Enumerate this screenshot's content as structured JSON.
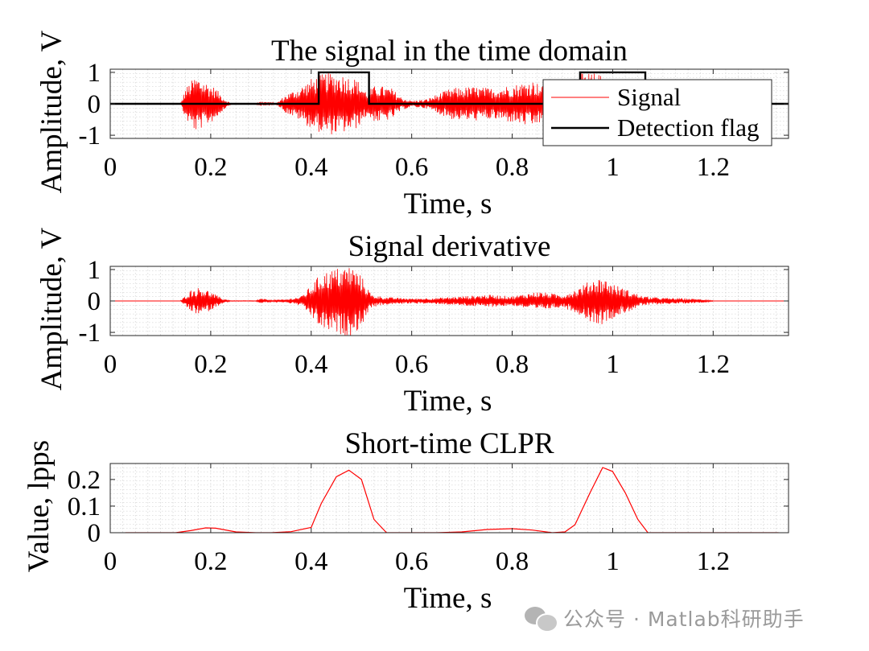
{
  "chart_data": [
    {
      "type": "line",
      "title": "The signal in the time domain",
      "xlabel": "Time, s",
      "ylabel": "Amplitude, V",
      "xlim": [
        0,
        1.35
      ],
      "ylim": [
        -1.1,
        1.1
      ],
      "xticks": [
        0,
        0.2,
        0.4,
        0.6,
        0.8,
        1,
        1.2
      ],
      "xtick_labels": [
        "0",
        "0.2",
        "0.4",
        "0.6",
        "0.8",
        "1",
        "1.2"
      ],
      "yticks": [
        -1,
        0,
        1
      ],
      "ytick_labels": [
        "-1",
        "0",
        "1"
      ],
      "grid": "minor dotted",
      "legend": {
        "position": "top-right",
        "entries": [
          "Signal",
          "Detection flag"
        ]
      },
      "series": [
        {
          "name": "Signal",
          "color": "#ff0000",
          "kind": "oscillation",
          "envelope": [
            [
              0.14,
              0.01
            ],
            [
              0.15,
              0.5
            ],
            [
              0.17,
              0.9
            ],
            [
              0.19,
              0.7
            ],
            [
              0.21,
              0.5
            ],
            [
              0.225,
              0.2
            ],
            [
              0.24,
              0.01
            ],
            [
              0.29,
              0.01
            ],
            [
              0.3,
              0.08
            ],
            [
              0.32,
              0.05
            ],
            [
              0.33,
              0.01
            ],
            [
              0.35,
              0.3
            ],
            [
              0.38,
              0.55
            ],
            [
              0.4,
              0.8
            ],
            [
              0.43,
              1.0
            ],
            [
              0.46,
              0.95
            ],
            [
              0.49,
              0.8
            ],
            [
              0.51,
              0.4
            ],
            [
              0.53,
              0.6
            ],
            [
              0.56,
              0.5
            ],
            [
              0.58,
              0.2
            ],
            [
              0.6,
              0.1
            ],
            [
              0.63,
              0.15
            ],
            [
              0.65,
              0.3
            ],
            [
              0.68,
              0.5
            ],
            [
              0.72,
              0.55
            ],
            [
              0.76,
              0.5
            ],
            [
              0.8,
              0.6
            ],
            [
              0.84,
              0.75
            ],
            [
              0.87,
              0.5
            ],
            [
              0.9,
              0.7
            ],
            [
              0.93,
              0.95
            ],
            [
              0.96,
              1.0
            ],
            [
              0.99,
              0.85
            ],
            [
              1.03,
              0.7
            ],
            [
              1.06,
              0.5
            ],
            [
              1.1,
              0.3
            ],
            [
              1.14,
              0.15
            ],
            [
              1.17,
              0.08
            ],
            [
              1.2,
              0.01
            ]
          ]
        },
        {
          "name": "Detection flag",
          "color": "#000000",
          "x": [
            0,
            0.415,
            0.415,
            0.515,
            0.515,
            0.935,
            0.935,
            1.065,
            1.065,
            1.35
          ],
          "y": [
            0,
            0,
            1,
            1,
            0,
            0,
            1,
            1,
            0,
            0
          ]
        }
      ]
    },
    {
      "type": "line",
      "title": "Signal derivative",
      "xlabel": "Time, s",
      "ylabel": "Amplitude, V",
      "xlim": [
        0,
        1.35
      ],
      "ylim": [
        -1.1,
        1.1
      ],
      "xticks": [
        0,
        0.2,
        0.4,
        0.6,
        0.8,
        1,
        1.2
      ],
      "xtick_labels": [
        "0",
        "0.2",
        "0.4",
        "0.6",
        "0.8",
        "1",
        "1.2"
      ],
      "yticks": [
        -1,
        0,
        1
      ],
      "ytick_labels": [
        "-1",
        "0",
        "1"
      ],
      "grid": "minor dotted",
      "series": [
        {
          "name": "",
          "color": "#ff0000",
          "kind": "oscillation",
          "envelope": [
            [
              0.14,
              0.01
            ],
            [
              0.16,
              0.35
            ],
            [
              0.18,
              0.45
            ],
            [
              0.2,
              0.3
            ],
            [
              0.22,
              0.1
            ],
            [
              0.24,
              0.01
            ],
            [
              0.29,
              0.01
            ],
            [
              0.3,
              0.08
            ],
            [
              0.32,
              0.03
            ],
            [
              0.35,
              0.05
            ],
            [
              0.38,
              0.15
            ],
            [
              0.4,
              0.5
            ],
            [
              0.42,
              0.9
            ],
            [
              0.45,
              1.05
            ],
            [
              0.48,
              1.15
            ],
            [
              0.5,
              0.8
            ],
            [
              0.52,
              0.2
            ],
            [
              0.55,
              0.12
            ],
            [
              0.6,
              0.08
            ],
            [
              0.65,
              0.1
            ],
            [
              0.7,
              0.15
            ],
            [
              0.75,
              0.2
            ],
            [
              0.8,
              0.15
            ],
            [
              0.85,
              0.3
            ],
            [
              0.9,
              0.2
            ],
            [
              0.93,
              0.4
            ],
            [
              0.96,
              0.7
            ],
            [
              0.98,
              0.75
            ],
            [
              1.0,
              0.55
            ],
            [
              1.03,
              0.35
            ],
            [
              1.06,
              0.15
            ],
            [
              1.1,
              0.1
            ],
            [
              1.15,
              0.08
            ],
            [
              1.18,
              0.05
            ],
            [
              1.2,
              0.01
            ]
          ]
        }
      ]
    },
    {
      "type": "line",
      "title": "Short-time CLPR",
      "xlabel": "Time, s",
      "ylabel": "Value, lpps",
      "xlim": [
        0,
        1.35
      ],
      "ylim": [
        0,
        0.26
      ],
      "xticks": [
        0,
        0.2,
        0.4,
        0.6,
        0.8,
        1,
        1.2
      ],
      "xtick_labels": [
        "0",
        "0.2",
        "0.4",
        "0.6",
        "0.8",
        "1",
        "1.2"
      ],
      "yticks": [
        0,
        0.1,
        0.2
      ],
      "ytick_labels": [
        "0",
        "0.1",
        "0.2"
      ],
      "grid": "minor dotted",
      "series": [
        {
          "name": "",
          "color": "#ff0000",
          "x": [
            0.03,
            0.06,
            0.1,
            0.13,
            0.16,
            0.19,
            0.21,
            0.25,
            0.29,
            0.32,
            0.36,
            0.4,
            0.42,
            0.45,
            0.475,
            0.5,
            0.525,
            0.55,
            0.6,
            0.65,
            0.7,
            0.75,
            0.8,
            0.84,
            0.88,
            0.905,
            0.925,
            0.955,
            0.98,
            1.0,
            1.025,
            1.05,
            1.07,
            1.1,
            1.15,
            1.2,
            1.25,
            1.3,
            1.33
          ],
          "y": [
            0,
            0,
            0,
            0,
            0.008,
            0.018,
            0.017,
            0.003,
            0,
            0,
            0.004,
            0.02,
            0.11,
            0.21,
            0.235,
            0.2,
            0.05,
            0,
            0,
            0,
            0.003,
            0.012,
            0.015,
            0.01,
            0,
            0.003,
            0.03,
            0.15,
            0.245,
            0.23,
            0.15,
            0.05,
            0,
            0,
            0,
            0,
            0,
            0,
            0
          ]
        }
      ]
    }
  ],
  "watermark": {
    "text": "公众号 · Matlab科研助手",
    "icon": "wechat-icon"
  }
}
